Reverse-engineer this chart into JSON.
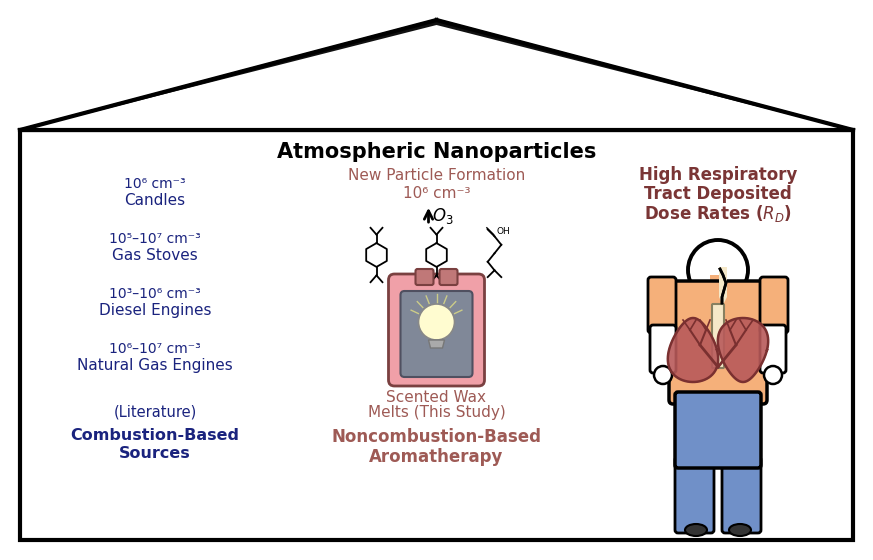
{
  "title": "Atmospheric Nanoparticles",
  "title_color": "#000000",
  "title_fontsize": 15,
  "bg_color": "#ffffff",
  "left_color": "#1a237e",
  "center_color": "#9e5a55",
  "right_color": "#7a3535",
  "left_entries": [
    [
      "10⁶ cm⁻³",
      "Candles"
    ],
    [
      "10⁵–10⁷ cm⁻³",
      "Gas Stoves"
    ],
    [
      "10³–10⁶ cm⁻³",
      "Diesel Engines"
    ],
    [
      "10⁶–10⁷ cm⁻³",
      "Natural Gas Engines"
    ]
  ],
  "peach": "#f5b07a",
  "skin": "#f5b07a",
  "lung_fill": "#b85a5a",
  "lung_edge": "#7a3030",
  "blue_pants": "#7090c8",
  "warmer_pink": "#f0a0a8",
  "warmer_dark": "#c07878",
  "warmer_gray": "#808898",
  "bulb_color": "#fffcd0"
}
